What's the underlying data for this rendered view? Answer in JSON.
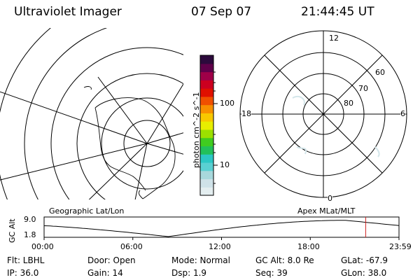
{
  "header": {
    "title": "Ultraviolet Imager",
    "date": "07 Sep 07",
    "time": "21:44:45 UT"
  },
  "colorbar": {
    "ylabel": "photon cm^-2 s^-1",
    "tick_100": "100",
    "tick_10": "10",
    "colors": [
      "#e4eef0",
      "#cfe2e8",
      "#a8d8dc",
      "#5ad0d2",
      "#2cc7c4",
      "#22c05a",
      "#40cc20",
      "#9ce000",
      "#e8ee00",
      "#f8c800",
      "#f89000",
      "#f05000",
      "#e01000",
      "#cc0020",
      "#a00048",
      "#60004a",
      "#2c0a3c"
    ]
  },
  "polar": {
    "label_top": "12",
    "label_left": "18",
    "label_right": "6",
    "label_bottom": "0",
    "lat_60": "60",
    "lat_70": "70",
    "lat_80": "80"
  },
  "altitude": {
    "ylabel": "GC Alt",
    "left_title": "Geographic Lat/Lon",
    "right_title": "Apex MLat/MLT",
    "y_max": "9.0",
    "y_min": "1.8",
    "x_ticks": [
      "00:00",
      "06:00",
      "12:00",
      "18:00",
      "23:59"
    ],
    "current_time_hours": 21.746,
    "accent_color": "#d02020"
  },
  "footer": {
    "flt": "Flt: LBHL",
    "door": "Door: Open",
    "mode": "Mode: Normal",
    "gc_alt": "GC Alt: 8.0 Re",
    "glat": "GLat: -67.9",
    "ip": "IP: 36.0",
    "gain": "Gain: 14",
    "dsp": "Dsp:    1.9",
    "seq": "Seq: 39",
    "glon": "GLon:  38.0"
  }
}
